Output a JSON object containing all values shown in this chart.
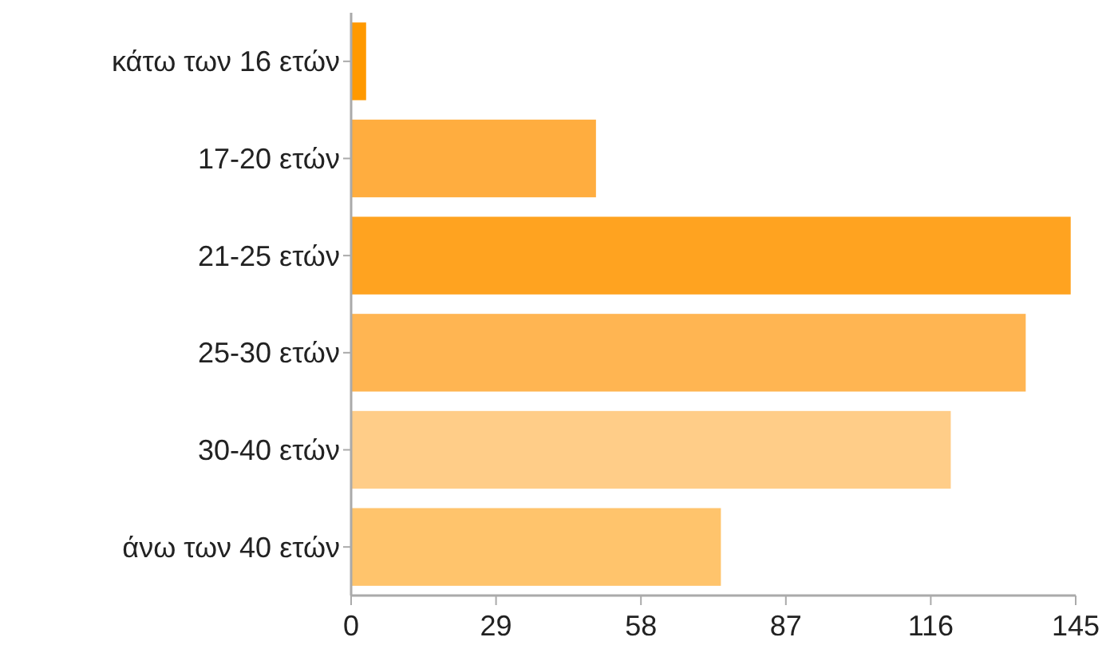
{
  "chart_data": {
    "type": "bar",
    "orientation": "horizontal",
    "categories": [
      "κάτω των 16 ετών",
      "17-20 ετών",
      "21-25 ετών",
      "25-30 ετών",
      "30-40 ετών",
      "άνω των 40 ετών"
    ],
    "values": [
      3,
      49,
      144,
      135,
      120,
      74
    ],
    "colors": [
      "#ff9900",
      "#ffad3f",
      "#ffa320",
      "#ffb552",
      "#ffcd88",
      "#ffc46c"
    ],
    "xlim": [
      0,
      145
    ],
    "xticks": [
      0,
      29,
      58,
      87,
      116,
      145
    ],
    "grid": false
  }
}
